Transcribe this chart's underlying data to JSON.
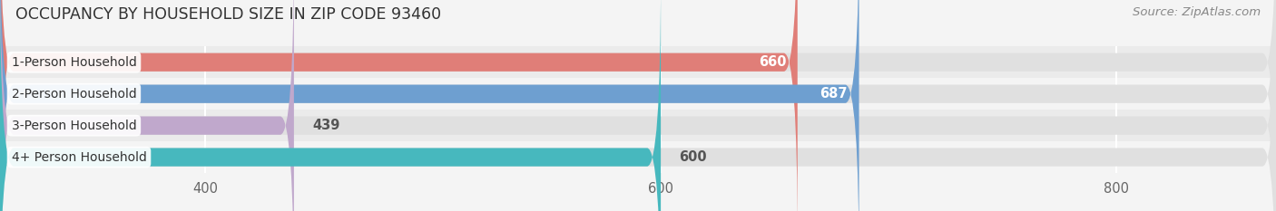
{
  "title": "OCCUPANCY BY HOUSEHOLD SIZE IN ZIP CODE 93460",
  "source": "Source: ZipAtlas.com",
  "categories": [
    "1-Person Household",
    "2-Person Household",
    "3-Person Household",
    "4+ Person Household"
  ],
  "values": [
    660,
    687,
    439,
    600
  ],
  "bar_colors": [
    "#E07E78",
    "#6E9FD0",
    "#C0A8CC",
    "#47B8BE"
  ],
  "value_inside": [
    true,
    true,
    false,
    false
  ],
  "xlim": [
    310,
    870
  ],
  "xticks": [
    400,
    600,
    800
  ],
  "bar_height": 0.58,
  "bg_color": "#f4f4f4",
  "bar_bg_color": "#e0e0e0",
  "row_bg_even": "#ebebeb",
  "row_bg_odd": "#f4f4f4",
  "title_fontsize": 12.5,
  "source_fontsize": 9.5,
  "label_fontsize": 10,
  "value_fontsize": 10.5,
  "tick_fontsize": 10.5
}
